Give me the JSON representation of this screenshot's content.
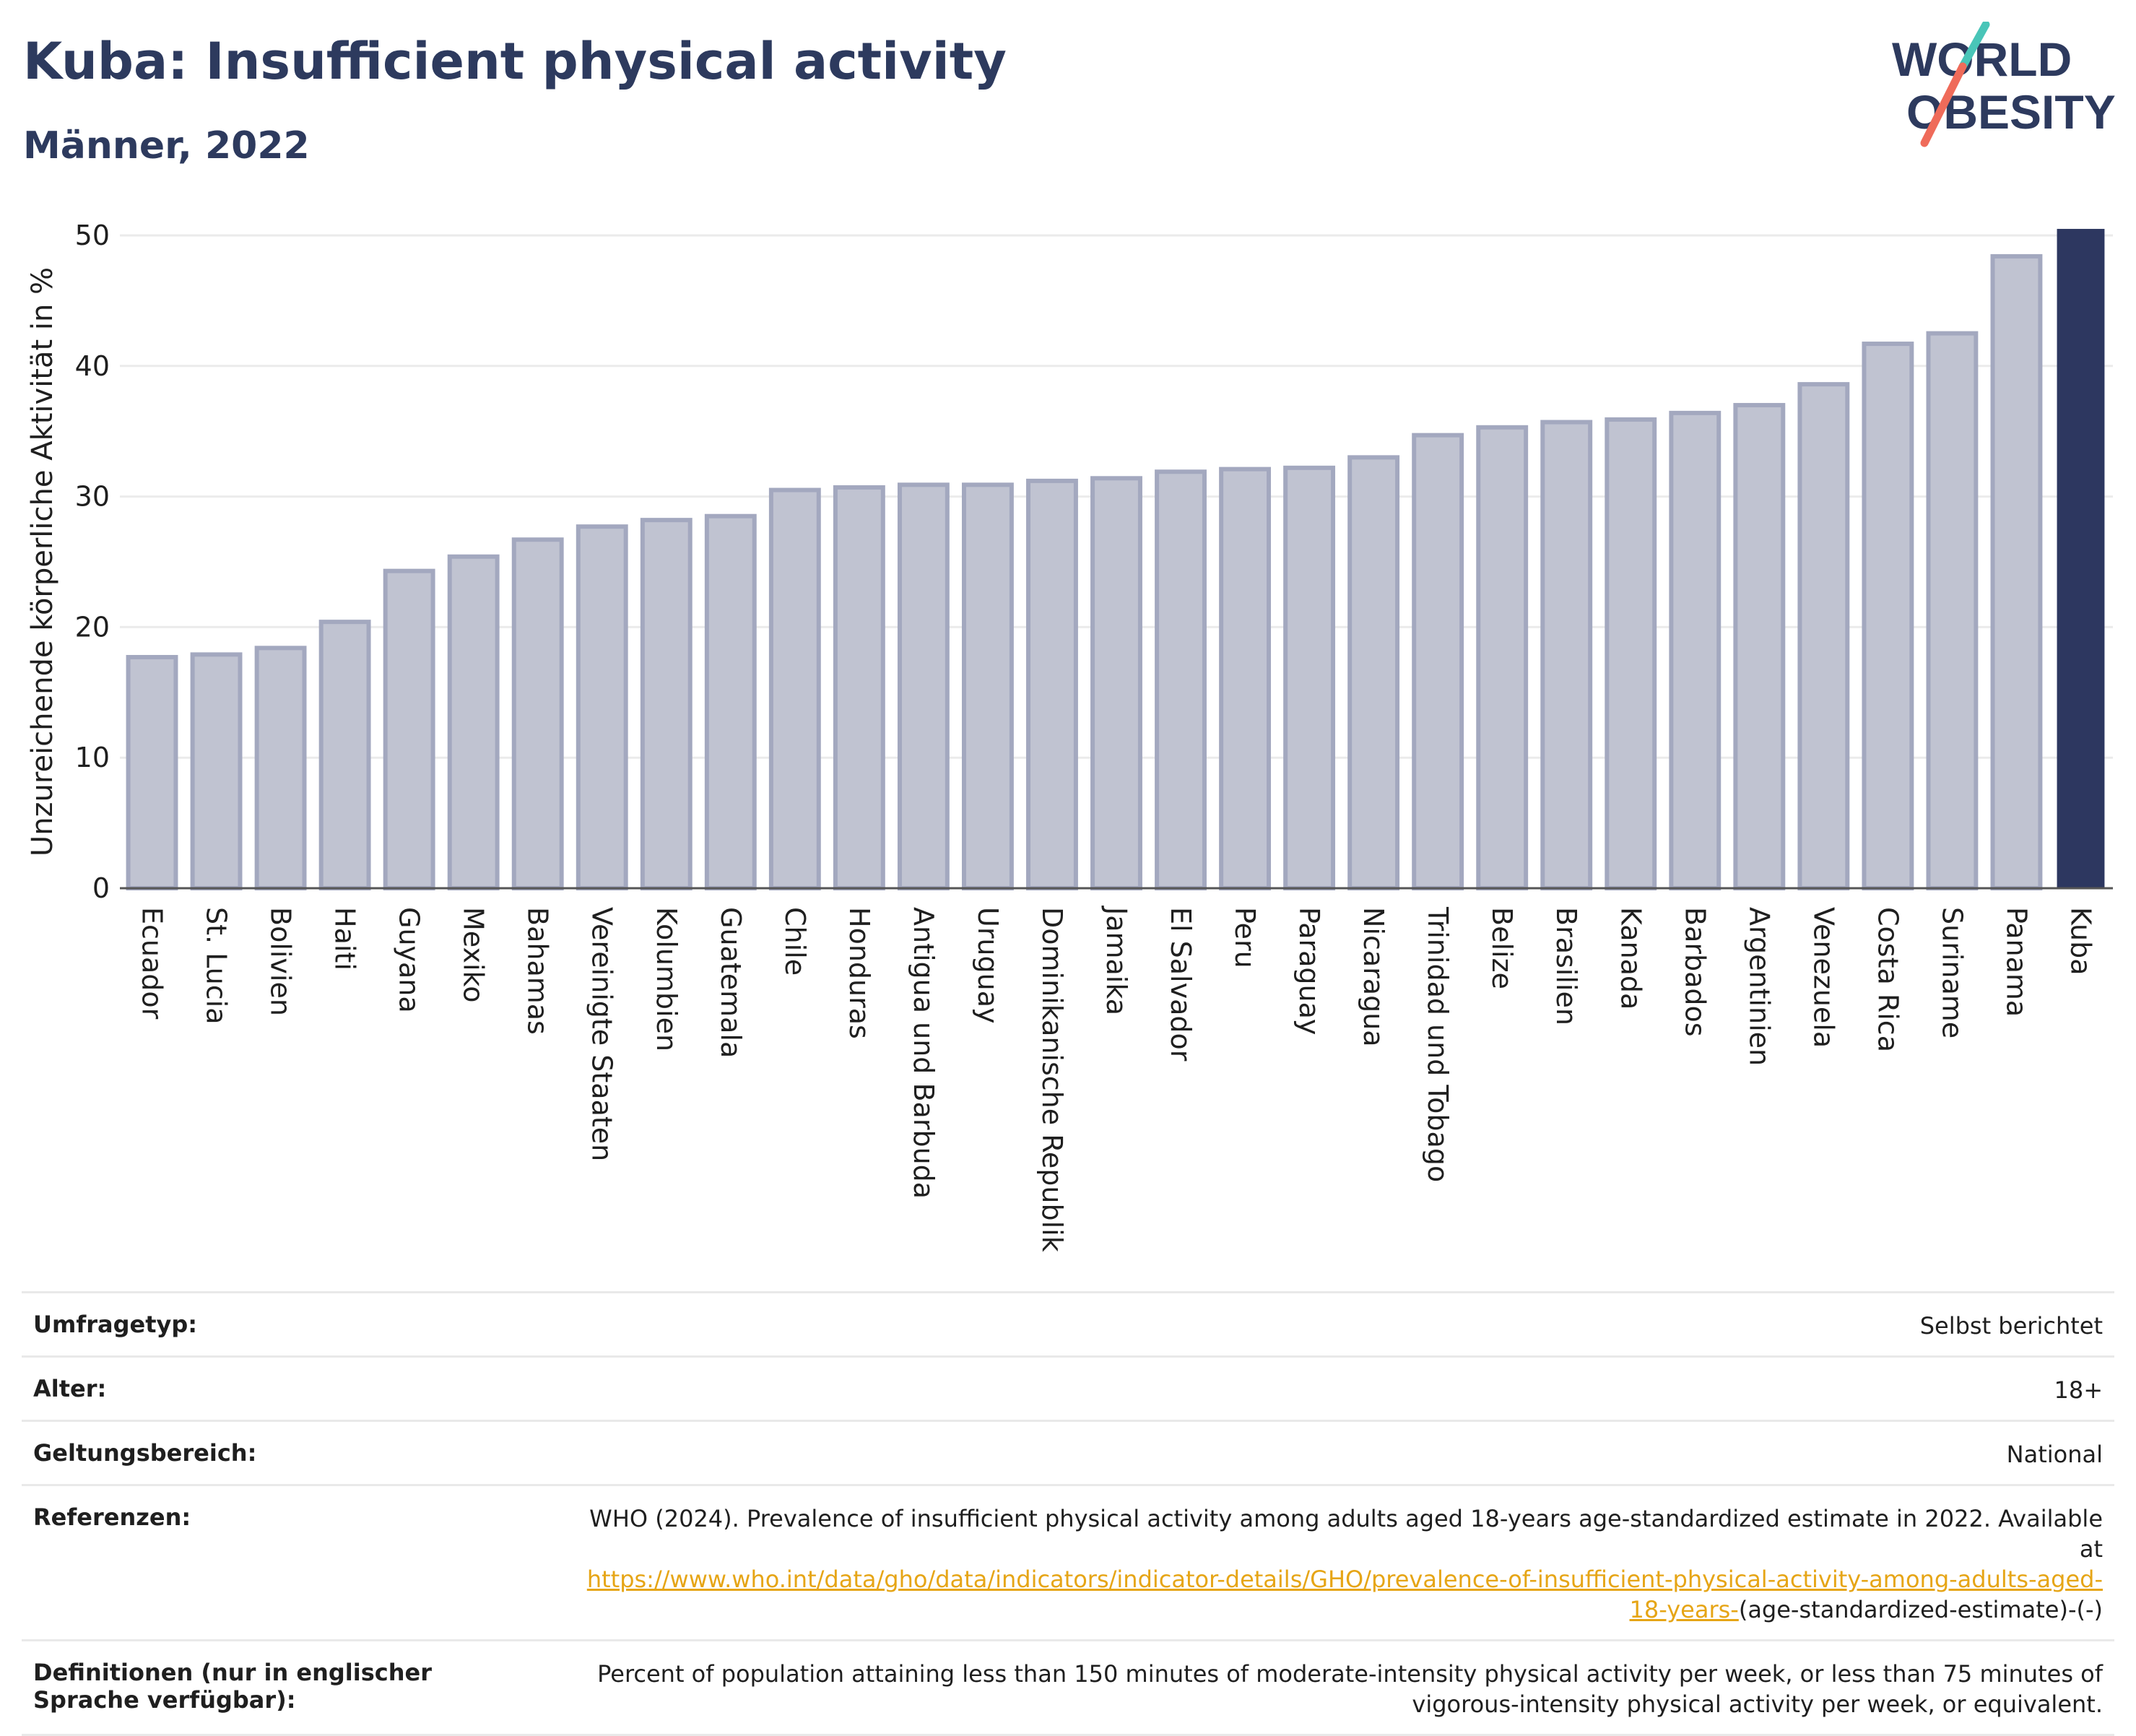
{
  "header": {
    "title": "Kuba: Insufficient physical activity",
    "subtitle": "Männer, 2022"
  },
  "logo": {
    "line1": "WORLD",
    "line2": "OBESITY",
    "text_color": "#2d3a5e",
    "slash_colors": [
      "#49c5b8",
      "#ef6b5a"
    ]
  },
  "colors": {
    "bar_fill": "#c0c3d1",
    "bar_stroke": "#a3a8bf",
    "highlight": "#2d3760",
    "grid": "#ebebeb",
    "link": "#e6a516"
  },
  "chart_data": {
    "type": "bar",
    "title": "Kuba: Insufficient physical activity",
    "subtitle": "Männer, 2022",
    "ylabel": "Unzureichende körperliche Aktivität in %",
    "xlabel": "",
    "ylim": [
      0,
      50
    ],
    "yticks": [
      0,
      10,
      20,
      30,
      40,
      50
    ],
    "grid": true,
    "highlight": "Kuba",
    "categories": [
      "Ecuador",
      "St. Lucia",
      "Bolivien",
      "Haiti",
      "Guyana",
      "Mexiko",
      "Bahamas",
      "Vereinigte Staaten",
      "Kolumbien",
      "Guatemala",
      "Chile",
      "Honduras",
      "Antigua und Barbuda",
      "Uruguay",
      "Dominikanische Republik",
      "Jamaika",
      "El Salvador",
      "Peru",
      "Paraguay",
      "Nicaragua",
      "Trinidad und Tobago",
      "Belize",
      "Brasilien",
      "Kanada",
      "Barbados",
      "Argentinien",
      "Venezuela",
      "Costa Rica",
      "Suriname",
      "Panama",
      "Kuba"
    ],
    "values": [
      17.7,
      17.9,
      18.4,
      20.4,
      24.3,
      25.4,
      26.7,
      27.7,
      28.2,
      28.5,
      30.5,
      30.7,
      30.9,
      30.9,
      31.2,
      31.4,
      31.9,
      32.1,
      32.2,
      33.0,
      34.7,
      35.3,
      35.7,
      35.9,
      36.4,
      37.0,
      38.6,
      41.7,
      42.5,
      48.4,
      50.5
    ]
  },
  "meta": {
    "survey_label": "Umfragetyp:",
    "survey_value": "Selbst berichtet",
    "age_label": "Alter:",
    "age_value": "18+",
    "scope_label": "Geltungsbereich:",
    "scope_value": "National",
    "ref_label": "Referenzen:",
    "ref_text": "WHO (2024). Prevalence of insufficient physical activity among adults aged 18-years age-standardized estimate in 2022. Available at",
    "ref_link_a": "https://www.who.int/data/gho/data/indicators/indicator-details/GHO/prevalence-of-insufficient-physical-activity-among-adults-aged-",
    "ref_link_b": "18-years-",
    "ref_tail": "(age-standardized-estimate)-(-)",
    "def_label": "Definitionen (nur in englischer Sprache verfügbar):",
    "def_value": "Percent of population attaining less than 150 minutes of moderate-intensity physical activity per week, or less than 75 minutes of vigorous-intensity physical activity per week, or equivalent."
  }
}
